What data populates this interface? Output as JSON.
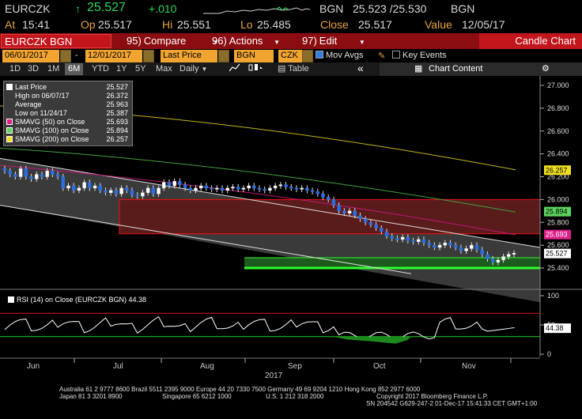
{
  "header": {
    "ticker": "EURCZK",
    "arrow": "↑",
    "last": "25.527",
    "change": "+.010",
    "source1": "BGN",
    "bid_ask": "25.523 /25.530",
    "source2": "BGN",
    "time_label": "At",
    "time": "15:41",
    "open_label": "Op",
    "open": "25.517",
    "hi_label": "Hi",
    "hi": "25.551",
    "lo_label": "Lo",
    "lo": "25.485",
    "close_label": "Close",
    "close": "25.517",
    "value_label": "Value",
    "value_date": "12/05/17"
  },
  "toolbar": {
    "ticker_button": "EURCZK BGN Curncy",
    "compare_num": "95)",
    "compare": "Compare",
    "actions_num": "96)",
    "actions": "Actions",
    "edit_num": "97)",
    "edit": "Edit",
    "candle_chart": "Candle Chart"
  },
  "range_row": {
    "start_date": "06/01/2017",
    "end_date": "12/01/2017",
    "price_field": "Last Price",
    "source": "BGN",
    "currency": "CZK",
    "mov_avgs": "Mov Avgs",
    "key_events": "Key Events"
  },
  "period_row": {
    "periods": [
      "1D",
      "3D",
      "1M",
      "6M",
      "YTD",
      "1Y",
      "5Y",
      "Max"
    ],
    "selected": "6M",
    "frequency": "Daily",
    "table": "Table",
    "chart_content": "Chart Content",
    "collapse": "«",
    "gear": "⚙"
  },
  "legend": [
    {
      "label": "Last Price",
      "value": "25.527",
      "color": "#ffffff"
    },
    {
      "label": "High on 06/07/17",
      "value": "26.372",
      "color": ""
    },
    {
      "label": "Average",
      "value": "25.963",
      "color": ""
    },
    {
      "label": "Low on 11/24/17",
      "value": "25.387",
      "color": ""
    },
    {
      "label": "SMAVG (50) on Close",
      "value": "25.693",
      "color": "#e0208a"
    },
    {
      "label": "SMAVG (100) on Close",
      "value": "25.894",
      "color": "#5fd35f"
    },
    {
      "label": "SMAVG (200) on Close",
      "value": "26.257",
      "color": "#f0e020"
    }
  ],
  "rsi_label": "RSI (14) on Close (EURCZK BGN) 44.38",
  "price_axis": [
    "27.000",
    "26.800",
    "26.600",
    "26.400",
    "26.200",
    "26.000",
    "25.800",
    "25.600",
    "25.400"
  ],
  "price_tags": [
    {
      "value": "26.257",
      "color": "#f0e020",
      "text_color": "#000"
    },
    {
      "value": "25.894",
      "color": "#5fd35f",
      "text_color": "#000"
    },
    {
      "value": "25.693",
      "color": "#e0208a",
      "text_color": "#fff"
    },
    {
      "value": "25.527",
      "color": "#ffffff",
      "text_color": "#000"
    }
  ],
  "rsi_axis": [
    "100",
    "50",
    "0"
  ],
  "rsi_tag": "44.38",
  "months": [
    "Jun",
    "Jul",
    "Aug",
    "Sep",
    "Oct",
    "Nov"
  ],
  "year": "2017",
  "footer": {
    "line1": "Australia 61 2 9777 8600 Brazil 5511 2395 9000 Europe 44 20 7330 7500 Germany 49 69 9204 1210 Hong Kong 852 2977 6000",
    "line2a": "Japan 81 3 3201 8900",
    "line2b": "Singapore 65 6212 1000",
    "line2c": "U.S. 1 212 318 2000",
    "line2d": "Copyright 2017 Bloomberg Finance L.P.",
    "line3": "SN 204542 G629-247-2 01-Dec-17 15:41:33 CET  GMT+1:00"
  },
  "chart_data": {
    "type": "candlestick",
    "ylim": [
      25.3,
      27.05
    ],
    "sma50": [
      26.12,
      25.69
    ],
    "sma100": [
      26.35,
      25.89
    ],
    "sma200": [
      26.75,
      26.26
    ],
    "close_series": [
      26.25,
      26.22,
      26.2,
      26.27,
      26.2,
      26.18,
      26.22,
      26.2,
      26.25,
      26.22,
      26.2,
      26.1,
      26.12,
      26.08,
      26.1,
      26.15,
      26.1,
      26.12,
      26.08,
      26.06,
      26.08,
      26.05,
      26.1,
      26.08,
      26.04,
      26.03,
      26.06,
      26.1,
      26.05,
      26.1,
      26.15,
      26.12,
      26.16,
      26.13,
      26.1,
      26.08,
      26.1,
      26.12,
      26.1,
      26.09,
      26.1,
      26.08,
      26.1,
      26.11,
      26.09,
      26.1,
      26.12,
      26.1,
      26.09,
      26.08,
      26.1,
      26.12,
      26.13,
      26.11,
      26.1,
      26.09,
      26.1,
      26.08,
      26.07,
      26.05,
      26.02,
      26.0,
      25.95,
      25.9,
      25.88,
      25.9,
      25.86,
      25.83,
      25.8,
      25.78,
      25.75,
      25.72,
      25.68,
      25.66,
      25.65,
      25.67,
      25.64,
      25.63,
      25.65,
      25.62,
      25.6,
      25.58,
      25.6,
      25.62,
      25.6,
      25.58,
      25.55,
      25.57,
      25.6,
      25.56,
      25.52,
      25.48,
      25.45,
      25.47,
      25.5,
      25.52,
      25.53
    ],
    "rsi_value": 44.38
  }
}
